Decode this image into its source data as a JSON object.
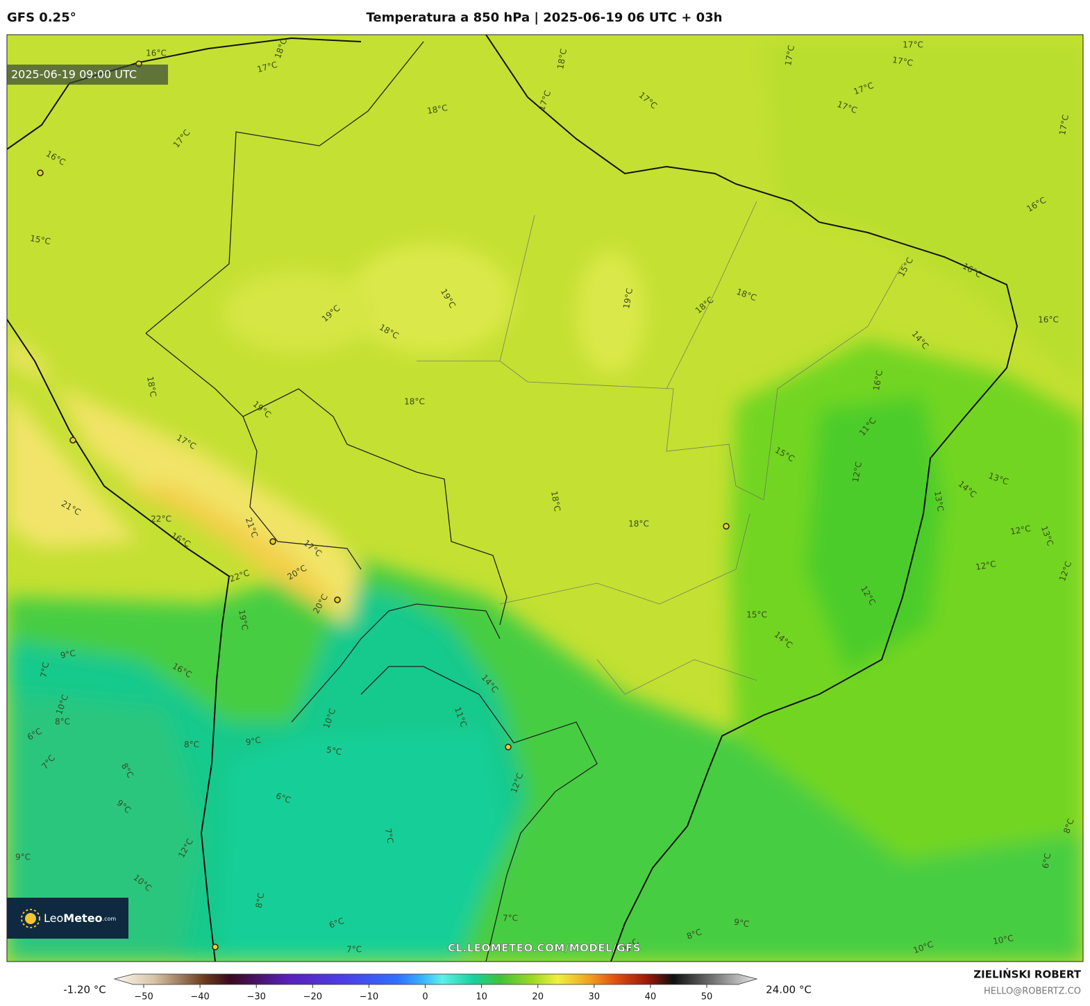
{
  "header": {
    "model": "GFS 0.25°",
    "title": "Temperatura a 850 hPa | 2025-06-19 06 UTC + 03h"
  },
  "map": {
    "valid_time": "2025-06-19 09:00 UTC",
    "watermark": "CL.LEOMETEO.COM/MODEL/GFS",
    "contour_labels": [
      "16°C",
      "18°C",
      "17°C",
      "18°C",
      "17°C",
      "17°C",
      "17°C",
      "17°C",
      "17°C",
      "17°C",
      "17°C",
      "17°C",
      "18°C",
      "17°C",
      "16°C",
      "15°C",
      "16°C",
      "16°C",
      "15°C",
      "18°C",
      "18°C",
      "19°C",
      "19°C",
      "19°C",
      "18°C",
      "16°C",
      "14°C",
      "18°C",
      "16°C",
      "18°C",
      "19°C",
      "11°C",
      "17°C",
      "15°C",
      "12°C",
      "13°C",
      "14°C",
      "13°C",
      "18°C",
      "21°C",
      "22°C",
      "18°C",
      "12°C",
      "13°C",
      "16°C",
      "21°C",
      "17°C",
      "12°C",
      "12°C",
      "20°C",
      "22°C",
      "12°C",
      "20°C",
      "15°C",
      "19°C",
      "14°C",
      "9°C",
      "16°C",
      "7°C",
      "14°C",
      "10°C",
      "8°C",
      "11°C",
      "10°C",
      "6°C",
      "8°C",
      "9°C",
      "7°C",
      "5°C",
      "8°C",
      "12°C",
      "9°C",
      "6°C",
      "7°C",
      "9°C",
      "12°C",
      "10°C",
      "8°C",
      "6°C",
      "8°C",
      "7°C",
      "9°C",
      "8°C",
      "6°C",
      "7°C",
      "10°C",
      "10°C",
      "5°C"
    ]
  },
  "logo": {
    "light": "Leo",
    "bold": "Meteo",
    "suffix": ".com"
  },
  "colorbar": {
    "min_label": "-1.20 °C",
    "max_label": "24.00 °C",
    "ticks": [
      "−50",
      "−40",
      "−30",
      "−20",
      "−10",
      "0",
      "10",
      "20",
      "30",
      "40",
      "50"
    ]
  },
  "credit": {
    "author": "ZIELIŃSKI ROBERT",
    "contact": "HELLO@ROBERTZ.CO"
  }
}
